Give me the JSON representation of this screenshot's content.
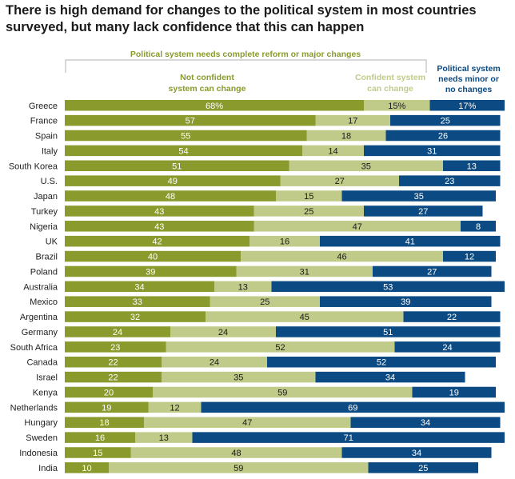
{
  "chart_data": {
    "type": "bar",
    "orientation": "horizontal",
    "stacked": true,
    "title": "There is high demand for changes to the political system in most countries surveyed, but many lack confidence that this can happen",
    "group_label": "Political system needs complete reform or major changes",
    "categories": [
      "Greece",
      "France",
      "Spain",
      "Italy",
      "South Korea",
      "U.S.",
      "Japan",
      "Turkey",
      "Nigeria",
      "UK",
      "Brazil",
      "Poland",
      "Australia",
      "Mexico",
      "Argentina",
      "Germany",
      "South Africa",
      "Canada",
      "Israel",
      "Kenya",
      "Netherlands",
      "Hungary",
      "Sweden",
      "Indonesia",
      "India"
    ],
    "series": [
      {
        "name": "Not confident system can change",
        "color": "#8a9a2c",
        "values": [
          68,
          57,
          55,
          54,
          51,
          49,
          48,
          43,
          43,
          42,
          40,
          39,
          34,
          33,
          32,
          24,
          23,
          22,
          22,
          20,
          19,
          18,
          16,
          15,
          10
        ]
      },
      {
        "name": "Confident system can change",
        "color": "#c1cb89",
        "values": [
          15,
          17,
          18,
          14,
          35,
          27,
          15,
          25,
          47,
          16,
          46,
          31,
          13,
          25,
          45,
          24,
          52,
          24,
          35,
          59,
          12,
          47,
          13,
          48,
          59
        ]
      },
      {
        "name": "Political system needs minor or no changes",
        "color": "#0b4a82",
        "values": [
          17,
          25,
          26,
          31,
          13,
          23,
          35,
          27,
          8,
          41,
          12,
          27,
          53,
          39,
          22,
          51,
          24,
          52,
          34,
          19,
          69,
          34,
          71,
          34,
          25
        ]
      }
    ],
    "first_row_percent": true,
    "legend": "top"
  },
  "headers": {
    "group": "Political system needs complete reform or major changes",
    "not_confident_1": "Not confident",
    "not_confident_2": "system can change",
    "confident_1": "Confident system",
    "confident_2": "can change",
    "minor_1": "Political system",
    "minor_2": "needs minor or",
    "minor_3": "no changes"
  }
}
